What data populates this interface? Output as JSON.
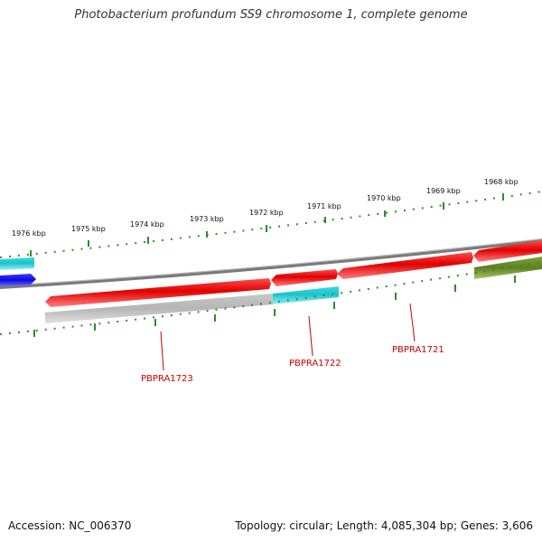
{
  "title": "Photobacterium profundum SS9 chromosome 1, complete genome",
  "footer": {
    "accession": "Accession: NC_006370",
    "summary": "Topology: circular; Length: 4,085,304 bp; Genes: 3,606"
  },
  "scale_labels": [
    "1976 kbp",
    "1975 kbp",
    "1974 kbp",
    "1973 kbp",
    "1972 kbp",
    "1971 kbp",
    "1970 kbp",
    "1969 kbp",
    "1968 kbp"
  ],
  "gene_labels": [
    "PBPRA1723",
    "PBPRA1722",
    "PBPRA1721"
  ],
  "colors": {
    "gene_red": "#e00000",
    "gene_cyan": "#1ec8d2",
    "gene_blue": "#1010e0",
    "gene_olive": "#6b8e23",
    "gene_gray": "#bdbdbd",
    "backbone": "#808080",
    "ticks": "#2e8b2e",
    "label_red": "#cc0000"
  }
}
